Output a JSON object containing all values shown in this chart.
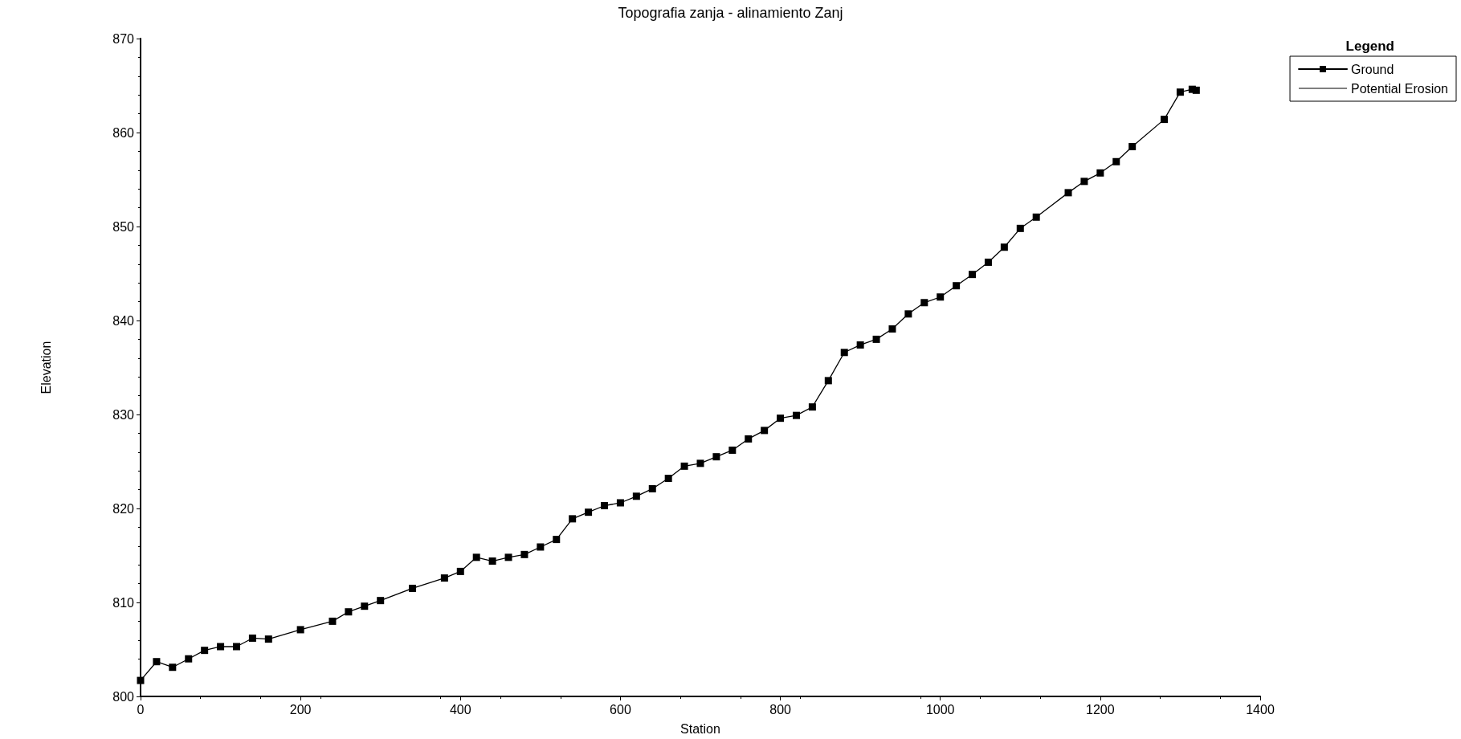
{
  "chart_data": {
    "type": "line",
    "title": "Topografia zanja - alinamiento Zanj",
    "xlabel": "Station",
    "ylabel": "Elevation",
    "legend_title": "Legend",
    "legend": "top right",
    "grid": false,
    "x": [
      0,
      20,
      40,
      60,
      80,
      100,
      120,
      140,
      160,
      200,
      240,
      260,
      280,
      300,
      340,
      380,
      400,
      420,
      440,
      460,
      480,
      500,
      520,
      540,
      560,
      580,
      600,
      620,
      640,
      660,
      680,
      700,
      720,
      740,
      760,
      780,
      800,
      820,
      840,
      860,
      880,
      900,
      920,
      940,
      960,
      980,
      1000,
      1020,
      1040,
      1060,
      1080,
      1100,
      1120,
      1160,
      1180,
      1200,
      1220,
      1240,
      1280,
      1300,
      1315,
      1320
    ],
    "xlim": [
      0,
      1400
    ],
    "xticks": [
      0,
      200,
      400,
      600,
      800,
      1000,
      1200,
      1400
    ],
    "ylim": [
      800,
      870
    ],
    "yticks": [
      800,
      810,
      820,
      830,
      840,
      850,
      860,
      870
    ],
    "series": [
      {
        "name": "Ground",
        "color": "#000000",
        "marker": "square",
        "line_style": "solid",
        "values": [
          801.7,
          803.7,
          803.1,
          804.0,
          804.9,
          805.3,
          805.3,
          806.2,
          806.1,
          807.1,
          808.0,
          809.0,
          809.6,
          810.2,
          811.5,
          812.6,
          813.3,
          814.8,
          814.4,
          814.8,
          815.1,
          815.9,
          816.7,
          818.9,
          819.6,
          820.3,
          820.6,
          821.3,
          822.1,
          823.2,
          824.5,
          824.8,
          825.5,
          826.2,
          827.4,
          828.3,
          829.6,
          829.9,
          830.8,
          833.6,
          836.6,
          837.4,
          838.0,
          839.1,
          840.7,
          841.9,
          842.5,
          843.7,
          844.9,
          846.2,
          847.8,
          849.8,
          851.0,
          853.6,
          854.8,
          855.7,
          856.9,
          858.5,
          861.4,
          864.3,
          864.6,
          864.5
        ]
      },
      {
        "name": "Potential Erosion",
        "color": "#000000",
        "marker": "none",
        "line_style": "dotted",
        "values": [
          null,
          null,
          null,
          null,
          null,
          null,
          null,
          null,
          null,
          null,
          null,
          null,
          null,
          null,
          null,
          null,
          null,
          null,
          null,
          null,
          null,
          null,
          null,
          null,
          null,
          null,
          null,
          null,
          null,
          null,
          null,
          null,
          null,
          null,
          null,
          null,
          null,
          null,
          null,
          null,
          null,
          null,
          null,
          null,
          null,
          null,
          null,
          null,
          null,
          null,
          null,
          null,
          null,
          null,
          null,
          null,
          null,
          null,
          null,
          null,
          null,
          null
        ]
      }
    ]
  }
}
